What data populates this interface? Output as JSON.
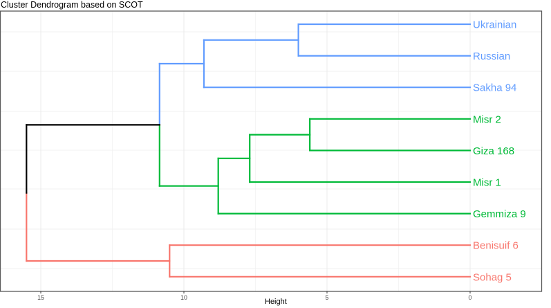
{
  "chart_data": {
    "type": "dendrogram",
    "title": "Cluster Dendrogram based on SCOT",
    "xlabel": "Height",
    "ylabel": "",
    "xlim": [
      -2.5,
      16.5
    ],
    "x_reversed": true,
    "x_ticks": [
      15,
      10,
      5,
      0
    ],
    "x_tick_labels": [
      "15",
      "10",
      "5",
      "0"
    ],
    "grid": true,
    "leaves": [
      {
        "label": "Ukrainian",
        "cluster": 1
      },
      {
        "label": "Russian",
        "cluster": 1
      },
      {
        "label": "Sakha 94",
        "cluster": 1
      },
      {
        "label": "Misr 2",
        "cluster": 2
      },
      {
        "label": "Giza 168",
        "cluster": 2
      },
      {
        "label": "Misr 1",
        "cluster": 2
      },
      {
        "label": "Gemmiza 9",
        "cluster": 2
      },
      {
        "label": "Benisuif 6",
        "cluster": 3
      },
      {
        "label": "Sohag 5",
        "cluster": 3
      }
    ],
    "merges": [
      {
        "members": [
          "Ukrainian",
          "Russian"
        ],
        "height": 6.0
      },
      {
        "members": [
          "Misr 2",
          "Giza 168"
        ],
        "height": 5.6
      },
      {
        "members": [
          "Misr 2",
          "Giza 168",
          "Misr 1"
        ],
        "height": 7.7
      },
      {
        "members": [
          "Misr 2",
          "Giza 168",
          "Misr 1",
          "Gemmiza 9"
        ],
        "height": 8.8
      },
      {
        "members": [
          "Ukrainian",
          "Russian",
          "Sakha 94"
        ],
        "height": 9.3
      },
      {
        "members": [
          "Benisuif 6",
          "Sohag 5"
        ],
        "height": 10.5
      },
      {
        "members": [
          "Blue cluster",
          "Green cluster"
        ],
        "height": 10.85
      },
      {
        "members": [
          "All"
        ],
        "height": 15.5
      }
    ],
    "clusters": [
      {
        "id": 1,
        "color": "#619CFF"
      },
      {
        "id": 2,
        "color": "#00BA38"
      },
      {
        "id": 3,
        "color": "#F8766D"
      }
    ],
    "root_color": "#000000"
  }
}
